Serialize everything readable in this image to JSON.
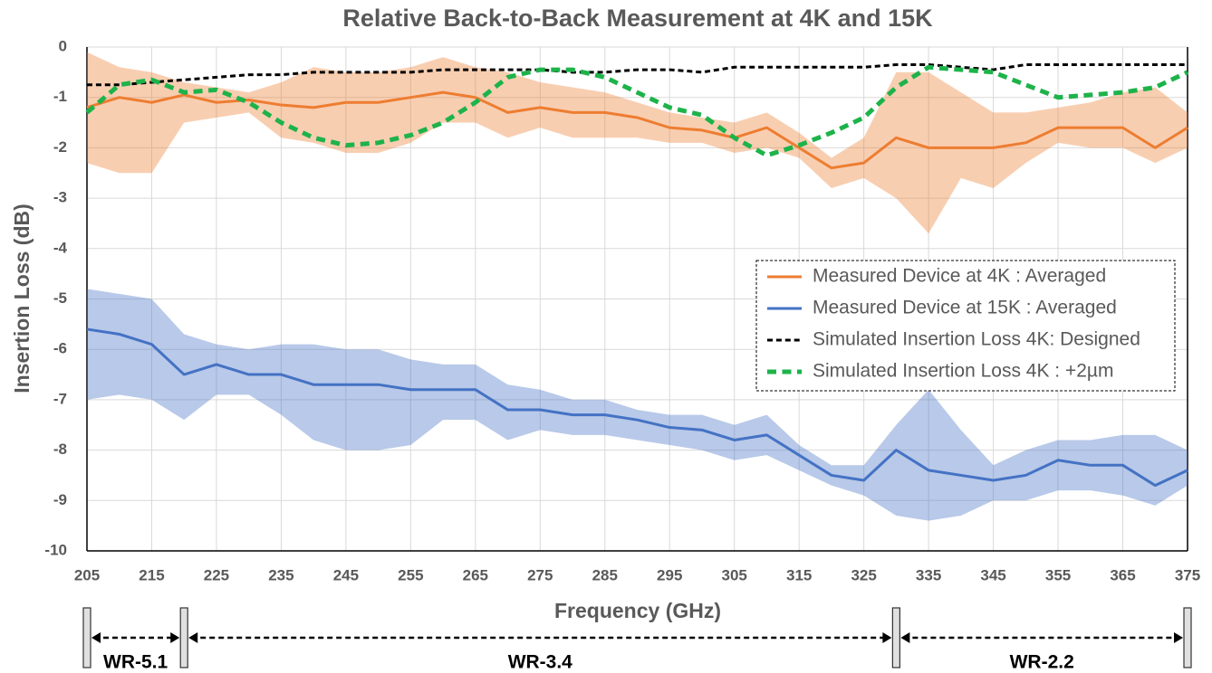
{
  "chart_data": {
    "type": "line",
    "title": "Relative Back-to-Back Measurement at 4K and 15K",
    "x_label": "Frequency (GHz)",
    "y_label": "Insertion Loss (dB)",
    "xlim": [
      205,
      375
    ],
    "ylim": [
      -10,
      0
    ],
    "xticks": [
      205,
      215,
      225,
      235,
      245,
      255,
      265,
      275,
      285,
      295,
      305,
      315,
      325,
      335,
      345,
      355,
      365,
      375
    ],
    "yticks": [
      0,
      -1,
      -2,
      -3,
      -4,
      -5,
      -6,
      -7,
      -8,
      -9,
      -10
    ],
    "grid": true,
    "x": [
      205,
      210,
      215,
      220,
      225,
      230,
      235,
      240,
      245,
      250,
      255,
      260,
      265,
      270,
      275,
      280,
      285,
      290,
      295,
      300,
      305,
      310,
      315,
      320,
      325,
      330,
      335,
      340,
      345,
      350,
      355,
      360,
      365,
      370,
      375
    ],
    "series": [
      {
        "name": "Measured Device at 4K : Averaged",
        "color": "#ed7d31",
        "dash": "solid",
        "width": 3,
        "values": [
          -1.2,
          -1.0,
          -1.1,
          -0.95,
          -1.1,
          -1.05,
          -1.15,
          -1.2,
          -1.1,
          -1.1,
          -1.0,
          -0.9,
          -1.0,
          -1.3,
          -1.2,
          -1.3,
          -1.3,
          -1.4,
          -1.6,
          -1.65,
          -1.8,
          -1.6,
          -2.0,
          -2.4,
          -2.3,
          -1.8,
          -2.0,
          -2.0,
          -2.0,
          -1.9,
          -1.6,
          -1.6,
          -1.6,
          -2.0,
          -1.6
        ],
        "band_upper": [
          -0.1,
          -0.4,
          -0.5,
          -0.7,
          -0.8,
          -0.9,
          -0.7,
          -0.4,
          -0.5,
          -0.5,
          -0.4,
          -0.2,
          -0.4,
          -0.5,
          -0.7,
          -0.8,
          -0.9,
          -1.1,
          -1.3,
          -1.4,
          -1.5,
          -1.3,
          -1.7,
          -2.2,
          -1.8,
          -0.5,
          -0.5,
          -0.9,
          -1.3,
          -1.3,
          -1.2,
          -1.1,
          -0.9,
          -0.8,
          -1.3
        ],
        "band_lower": [
          -2.3,
          -2.5,
          -2.5,
          -1.5,
          -1.4,
          -1.3,
          -1.8,
          -1.9,
          -2.1,
          -2.1,
          -1.9,
          -1.5,
          -1.5,
          -1.8,
          -1.6,
          -1.8,
          -1.8,
          -1.8,
          -1.9,
          -1.9,
          -2.1,
          -2.0,
          -2.2,
          -2.8,
          -2.6,
          -3.0,
          -3.7,
          -2.6,
          -2.8,
          -2.3,
          -1.9,
          -2.0,
          -2.0,
          -2.3,
          -2.0
        ]
      },
      {
        "name": "Measured Device at 15K : Averaged",
        "color": "#4472c4",
        "dash": "solid",
        "width": 3,
        "values": [
          -5.6,
          -5.7,
          -5.9,
          -6.5,
          -6.3,
          -6.5,
          -6.5,
          -6.7,
          -6.7,
          -6.7,
          -6.8,
          -6.8,
          -6.8,
          -7.2,
          -7.2,
          -7.3,
          -7.3,
          -7.4,
          -7.55,
          -7.6,
          -7.8,
          -7.7,
          -8.1,
          -8.5,
          -8.6,
          -8.0,
          -8.4,
          -8.5,
          -8.6,
          -8.5,
          -8.2,
          -8.3,
          -8.3,
          -8.7,
          -8.4
        ],
        "band_upper": [
          -4.8,
          -4.9,
          -5.0,
          -5.7,
          -5.9,
          -6.0,
          -5.9,
          -5.9,
          -6.0,
          -6.0,
          -6.2,
          -6.3,
          -6.3,
          -6.7,
          -6.8,
          -7.0,
          -7.0,
          -7.2,
          -7.3,
          -7.3,
          -7.5,
          -7.3,
          -7.9,
          -8.3,
          -8.3,
          -7.5,
          -6.8,
          -7.6,
          -8.3,
          -8.0,
          -7.8,
          -7.8,
          -7.7,
          -7.7,
          -8.0
        ],
        "band_lower": [
          -7.0,
          -6.9,
          -7.0,
          -7.4,
          -6.9,
          -6.9,
          -7.3,
          -7.8,
          -8.0,
          -8.0,
          -7.9,
          -7.4,
          -7.4,
          -7.8,
          -7.6,
          -7.7,
          -7.7,
          -7.8,
          -7.9,
          -8.0,
          -8.2,
          -8.1,
          -8.4,
          -8.7,
          -8.9,
          -9.3,
          -9.4,
          -9.3,
          -9.0,
          -9.0,
          -8.8,
          -8.8,
          -8.9,
          -9.1,
          -8.7
        ]
      },
      {
        "name": "Simulated Insertion Loss 4K: Designed",
        "color": "#000000",
        "dash": "dash",
        "width": 3,
        "values": [
          -0.75,
          -0.75,
          -0.7,
          -0.65,
          -0.6,
          -0.55,
          -0.55,
          -0.5,
          -0.5,
          -0.5,
          -0.5,
          -0.45,
          -0.45,
          -0.45,
          -0.45,
          -0.5,
          -0.5,
          -0.45,
          -0.45,
          -0.5,
          -0.4,
          -0.4,
          -0.4,
          -0.4,
          -0.4,
          -0.35,
          -0.35,
          -0.4,
          -0.45,
          -0.35,
          -0.35,
          -0.35,
          -0.35,
          -0.35,
          -0.35
        ]
      },
      {
        "name": "Simulated Insertion Loss 4K : +2µm",
        "color": "#1db34a",
        "dash": "dash",
        "width": 5,
        "values": [
          -1.3,
          -0.75,
          -0.65,
          -0.9,
          -0.85,
          -1.1,
          -1.5,
          -1.8,
          -1.95,
          -1.9,
          -1.75,
          -1.5,
          -1.1,
          -0.6,
          -0.45,
          -0.45,
          -0.6,
          -0.9,
          -1.2,
          -1.35,
          -1.8,
          -2.15,
          -1.95,
          -1.7,
          -1.4,
          -0.8,
          -0.4,
          -0.45,
          -0.5,
          -0.75,
          -1.0,
          -0.95,
          -0.9,
          -0.8,
          -0.5
        ]
      }
    ],
    "legend_position": "right",
    "bands": [
      {
        "label": "WR-5.1",
        "start": 205,
        "end": 220
      },
      {
        "label": "WR-3.4",
        "start": 220,
        "end": 330
      },
      {
        "label": "WR-2.2",
        "start": 330,
        "end": 375
      }
    ]
  }
}
